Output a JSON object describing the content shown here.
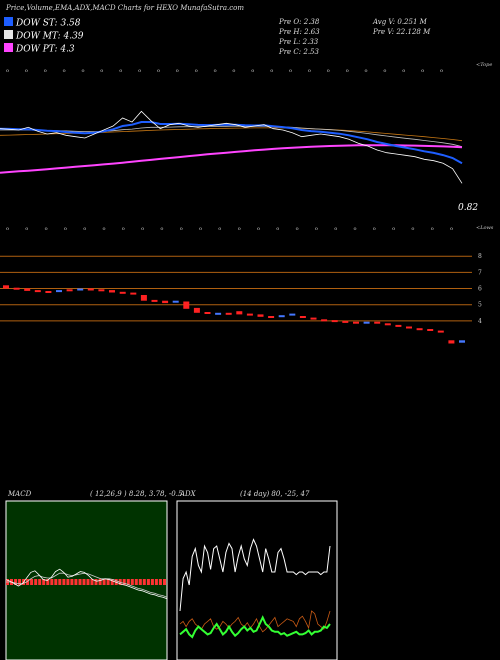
{
  "header": {
    "title": "Price,Volume,EMA,ADX,MACD Charts for HEXO MunafaSutra.com"
  },
  "legend": {
    "items": [
      {
        "label": "DOW ST: 3.58",
        "color": "#1e5eff"
      },
      {
        "label": "DOW MT: 4.39",
        "color": "#e6e6e6"
      },
      {
        "label": "DOW PT: 4.3",
        "color": "#ff44ff"
      }
    ]
  },
  "info": {
    "prev_open": "Pre  O: 2.38",
    "prev_high": "Pre  H: 2.63",
    "prev_low": "Pre  L: 2.33",
    "prev_close": "Pre  C: 2.53",
    "avg_volume": "Avg V: 0.251 M",
    "prev_volume": "Pre  V: 22.128  M"
  },
  "colors": {
    "background": "#000000",
    "price_line": "#ffffff",
    "ema_short": "#1e5eff",
    "ema_mid": "#bfbfbf",
    "ema_long": "#ff44ff",
    "ema_orange": "#c87814",
    "bull_candle": "#4477ff",
    "bear_candle": "#ff2222",
    "grid_line": "#b06010",
    "macd_bg": "#003300",
    "macd_bar": "#ff3333",
    "adx_line": "#ffffff",
    "adx_plus": "#33ff33",
    "adx_minus": "#c85a14"
  },
  "chart_data": [
    {
      "type": "line",
      "name": "price_ema_panel",
      "top_right_label": "<Tope",
      "last_price_label": "0.82",
      "x_tick_marks": [
        "o",
        "o",
        "o",
        "o",
        "o",
        "o",
        "o",
        "o",
        "o",
        "o",
        "o",
        "o",
        "o",
        "o",
        "o",
        "o",
        "o",
        "o",
        "o",
        "o",
        "o",
        "o",
        "o",
        "o"
      ],
      "series": [
        {
          "key": "price",
          "values": [
            9.6,
            9.55,
            9.5,
            9.7,
            9.4,
            9.2,
            9.3,
            9.1,
            9.0,
            8.9,
            9.2,
            9.5,
            9.8,
            10.4,
            10.1,
            10.9,
            10.2,
            9.6,
            9.9,
            10.0,
            9.8,
            9.7,
            9.8,
            9.9,
            10.0,
            9.9,
            9.7,
            9.8,
            9.9,
            9.6,
            9.5,
            9.3,
            9.0,
            9.1,
            9.2,
            9.1,
            9.0,
            8.8,
            8.5,
            8.3,
            8.0,
            7.8,
            7.7,
            7.6,
            7.5,
            7.3,
            7.2,
            7.0,
            6.6,
            5.5
          ]
        },
        {
          "key": "ema_short",
          "values": [
            9.6,
            9.58,
            9.55,
            9.55,
            9.5,
            9.45,
            9.42,
            9.35,
            9.3,
            9.25,
            9.3,
            9.4,
            9.55,
            9.8,
            9.9,
            10.1,
            10.1,
            9.95,
            9.95,
            9.97,
            9.93,
            9.88,
            9.87,
            9.88,
            9.9,
            9.9,
            9.85,
            9.84,
            9.85,
            9.78,
            9.72,
            9.63,
            9.5,
            9.42,
            9.37,
            9.3,
            9.22,
            9.1,
            8.95,
            8.8,
            8.6,
            8.45,
            8.3,
            8.18,
            8.05,
            7.9,
            7.78,
            7.62,
            7.4,
            7.0
          ]
        },
        {
          "key": "ema_mid",
          "values": [
            9.5,
            9.5,
            9.5,
            9.5,
            9.48,
            9.46,
            9.45,
            9.43,
            9.4,
            9.38,
            9.38,
            9.4,
            9.45,
            9.52,
            9.57,
            9.65,
            9.7,
            9.7,
            9.72,
            9.74,
            9.75,
            9.75,
            9.76,
            9.77,
            9.78,
            9.79,
            9.78,
            9.78,
            9.78,
            9.76,
            9.73,
            9.7,
            9.65,
            9.6,
            9.56,
            9.52,
            9.47,
            9.4,
            9.32,
            9.24,
            9.14,
            9.05,
            8.96,
            8.88,
            8.8,
            8.71,
            8.63,
            8.54,
            8.43,
            8.25
          ]
        },
        {
          "key": "ema_orange",
          "values": [
            9.1,
            9.12,
            9.14,
            9.16,
            9.18,
            9.2,
            9.22,
            9.24,
            9.26,
            9.28,
            9.3,
            9.32,
            9.35,
            9.38,
            9.41,
            9.44,
            9.47,
            9.5,
            9.52,
            9.54,
            9.56,
            9.58,
            9.6,
            9.62,
            9.63,
            9.64,
            9.65,
            9.66,
            9.66,
            9.66,
            9.65,
            9.64,
            9.62,
            9.6,
            9.57,
            9.54,
            9.5,
            9.46,
            9.41,
            9.36,
            9.3,
            9.24,
            9.18,
            9.12,
            9.06,
            9.0,
            8.93,
            8.86,
            8.79,
            8.7
          ]
        },
        {
          "key": "ema_long",
          "values": [
            6.3,
            6.35,
            6.4,
            6.45,
            6.5,
            6.56,
            6.62,
            6.68,
            6.74,
            6.8,
            6.86,
            6.92,
            6.98,
            7.05,
            7.12,
            7.19,
            7.26,
            7.33,
            7.4,
            7.47,
            7.54,
            7.61,
            7.68,
            7.74,
            7.8,
            7.86,
            7.92,
            7.98,
            8.03,
            8.08,
            8.13,
            8.17,
            8.21,
            8.24,
            8.27,
            8.3,
            8.32,
            8.34,
            8.35,
            8.36,
            8.36,
            8.36,
            8.35,
            8.34,
            8.33,
            8.31,
            8.29,
            8.27,
            8.24,
            8.2
          ]
        }
      ]
    },
    {
      "type": "bar",
      "name": "candlestick_panel",
      "top_right_label": "<Lows",
      "x_tick_marks": [
        "o",
        "o",
        "o",
        "o",
        "o",
        "o",
        "o",
        "o",
        "o",
        "o",
        "o",
        "o",
        "o",
        "o",
        "o",
        "o",
        "o",
        "o",
        "o",
        "o",
        "o",
        "o",
        "o",
        "o"
      ],
      "ytick_labels": [
        "8",
        "7",
        "6",
        "5",
        "4"
      ],
      "y_ticks": [
        8,
        7,
        6,
        5,
        4
      ],
      "ylim": [
        2.2,
        9.0
      ],
      "candles": [
        {
          "o": 6.2,
          "c": 6.0,
          "bull": false
        },
        {
          "o": 6.05,
          "c": 5.95,
          "bull": false
        },
        {
          "o": 6.0,
          "c": 5.85,
          "bull": false
        },
        {
          "o": 5.9,
          "c": 5.8,
          "bull": false
        },
        {
          "o": 5.85,
          "c": 5.75,
          "bull": false
        },
        {
          "o": 5.8,
          "c": 5.9,
          "bull": true
        },
        {
          "o": 5.95,
          "c": 5.85,
          "bull": false
        },
        {
          "o": 5.9,
          "c": 6.0,
          "bull": true
        },
        {
          "o": 6.0,
          "c": 5.9,
          "bull": false
        },
        {
          "o": 5.95,
          "c": 5.85,
          "bull": false
        },
        {
          "o": 5.9,
          "c": 5.75,
          "bull": false
        },
        {
          "o": 5.8,
          "c": 5.7,
          "bull": false
        },
        {
          "o": 5.75,
          "c": 5.65,
          "bull": false
        },
        {
          "o": 5.6,
          "c": 5.25,
          "bull": false
        },
        {
          "o": 5.3,
          "c": 5.2,
          "bull": false
        },
        {
          "o": 5.25,
          "c": 5.1,
          "bull": false
        },
        {
          "o": 5.15,
          "c": 5.25,
          "bull": true
        },
        {
          "o": 5.2,
          "c": 4.75,
          "bull": false
        },
        {
          "o": 4.8,
          "c": 4.5,
          "bull": false
        },
        {
          "o": 4.55,
          "c": 4.45,
          "bull": false
        },
        {
          "o": 4.45,
          "c": 4.5,
          "bull": true
        },
        {
          "o": 4.5,
          "c": 4.45,
          "bull": false
        },
        {
          "o": 4.6,
          "c": 4.4,
          "bull": false
        },
        {
          "o": 4.45,
          "c": 4.35,
          "bull": false
        },
        {
          "o": 4.4,
          "c": 4.25,
          "bull": false
        },
        {
          "o": 4.3,
          "c": 4.2,
          "bull": false
        },
        {
          "o": 4.25,
          "c": 4.35,
          "bull": true
        },
        {
          "o": 4.35,
          "c": 4.45,
          "bull": true
        },
        {
          "o": 4.3,
          "c": 4.2,
          "bull": false
        },
        {
          "o": 4.2,
          "c": 4.15,
          "bull": false
        },
        {
          "o": 4.1,
          "c": 4.05,
          "bull": false
        },
        {
          "o": 4.05,
          "c": 3.95,
          "bull": false
        },
        {
          "o": 4.0,
          "c": 3.9,
          "bull": false
        },
        {
          "o": 3.95,
          "c": 3.85,
          "bull": false
        },
        {
          "o": 3.9,
          "c": 3.95,
          "bull": true
        },
        {
          "o": 3.95,
          "c": 3.85,
          "bull": false
        },
        {
          "o": 3.85,
          "c": 3.75,
          "bull": false
        },
        {
          "o": 3.75,
          "c": 3.7,
          "bull": false
        },
        {
          "o": 3.65,
          "c": 3.55,
          "bull": false
        },
        {
          "o": 3.55,
          "c": 3.45,
          "bull": false
        },
        {
          "o": 3.5,
          "c": 3.4,
          "bull": false
        },
        {
          "o": 3.4,
          "c": 3.3,
          "bull": false
        },
        {
          "o": 2.8,
          "c": 2.6,
          "bull": false
        },
        {
          "o": 2.65,
          "c": 2.8,
          "bull": true
        }
      ]
    },
    {
      "type": "bar",
      "name": "macd_panel",
      "title": "MACD",
      "params": "( 12,26,9 ) 8.28,  3.78,  -0.5",
      "hist": [
        1,
        1,
        1,
        1,
        1,
        1,
        1,
        1,
        1,
        1,
        1,
        1,
        1,
        1,
        1,
        1,
        1,
        1,
        1,
        1,
        1,
        1,
        1,
        1,
        1,
        1,
        1,
        1,
        1,
        1,
        1,
        1,
        1,
        1,
        1,
        1,
        1,
        1,
        1,
        1
      ],
      "macd_line": [
        0.3,
        0.1,
        -0.2,
        -0.5,
        -0.2,
        0.5,
        1.2,
        1.4,
        0.9,
        0.3,
        0.2,
        0.6,
        1.3,
        1.6,
        1.2,
        0.6,
        0.7,
        1.0,
        1.3,
        1.2,
        0.8,
        0.3,
        0.1,
        0.2,
        0.4,
        0.3,
        0.1,
        -0.1,
        -0.3,
        -0.4,
        -0.6,
        -0.8,
        -1.0,
        -1.1,
        -1.3,
        -1.5,
        -1.6,
        -1.8,
        -1.9,
        -2.1
      ],
      "signal_line": [
        0.0,
        0.0,
        -0.1,
        -0.2,
        -0.2,
        0.0,
        0.4,
        0.7,
        0.8,
        0.6,
        0.5,
        0.5,
        0.8,
        1.1,
        1.1,
        0.9,
        0.8,
        0.9,
        1.0,
        1.1,
        1.0,
        0.8,
        0.6,
        0.4,
        0.4,
        0.4,
        0.3,
        0.1,
        -0.1,
        -0.2,
        -0.4,
        -0.6,
        -0.8,
        -0.9,
        -1.1,
        -1.3,
        -1.4,
        -1.6,
        -1.7,
        -1.9
      ],
      "ylim": [
        -4,
        4
      ]
    },
    {
      "type": "line",
      "name": "adx_panel",
      "title": "ADX",
      "params": "(14  day) 80,  -25,  47",
      "adx": [
        30,
        55,
        60,
        50,
        72,
        78,
        65,
        60,
        80,
        75,
        62,
        78,
        80,
        70,
        60,
        75,
        82,
        78,
        60,
        72,
        80,
        70,
        65,
        78,
        85,
        80,
        70,
        60,
        78,
        70,
        60,
        60,
        75,
        78,
        70,
        60,
        60,
        60,
        58,
        60,
        60,
        58,
        60,
        60,
        60,
        60,
        58,
        60,
        60,
        80
      ],
      "di_plus": [
        12,
        14,
        16,
        12,
        10,
        15,
        18,
        16,
        14,
        12,
        13,
        17,
        20,
        16,
        12,
        14,
        18,
        14,
        11,
        13,
        16,
        18,
        15,
        17,
        14,
        15,
        20,
        25,
        20,
        18,
        15,
        14,
        14,
        12,
        13,
        11,
        12,
        13,
        14,
        12,
        12,
        13,
        15,
        12,
        14,
        14,
        15,
        18,
        17,
        20
      ],
      "di_minus": [
        20,
        22,
        18,
        22,
        24,
        20,
        18,
        16,
        20,
        22,
        24,
        18,
        16,
        18,
        22,
        20,
        17,
        20,
        22,
        25,
        20,
        18,
        21,
        17,
        20,
        24,
        18,
        14,
        16,
        19,
        22,
        25,
        18,
        20,
        22,
        24,
        23,
        22,
        18,
        24,
        26,
        22,
        17,
        30,
        28,
        20,
        18,
        16,
        22,
        30
      ],
      "ylim": [
        0,
        100
      ]
    }
  ]
}
